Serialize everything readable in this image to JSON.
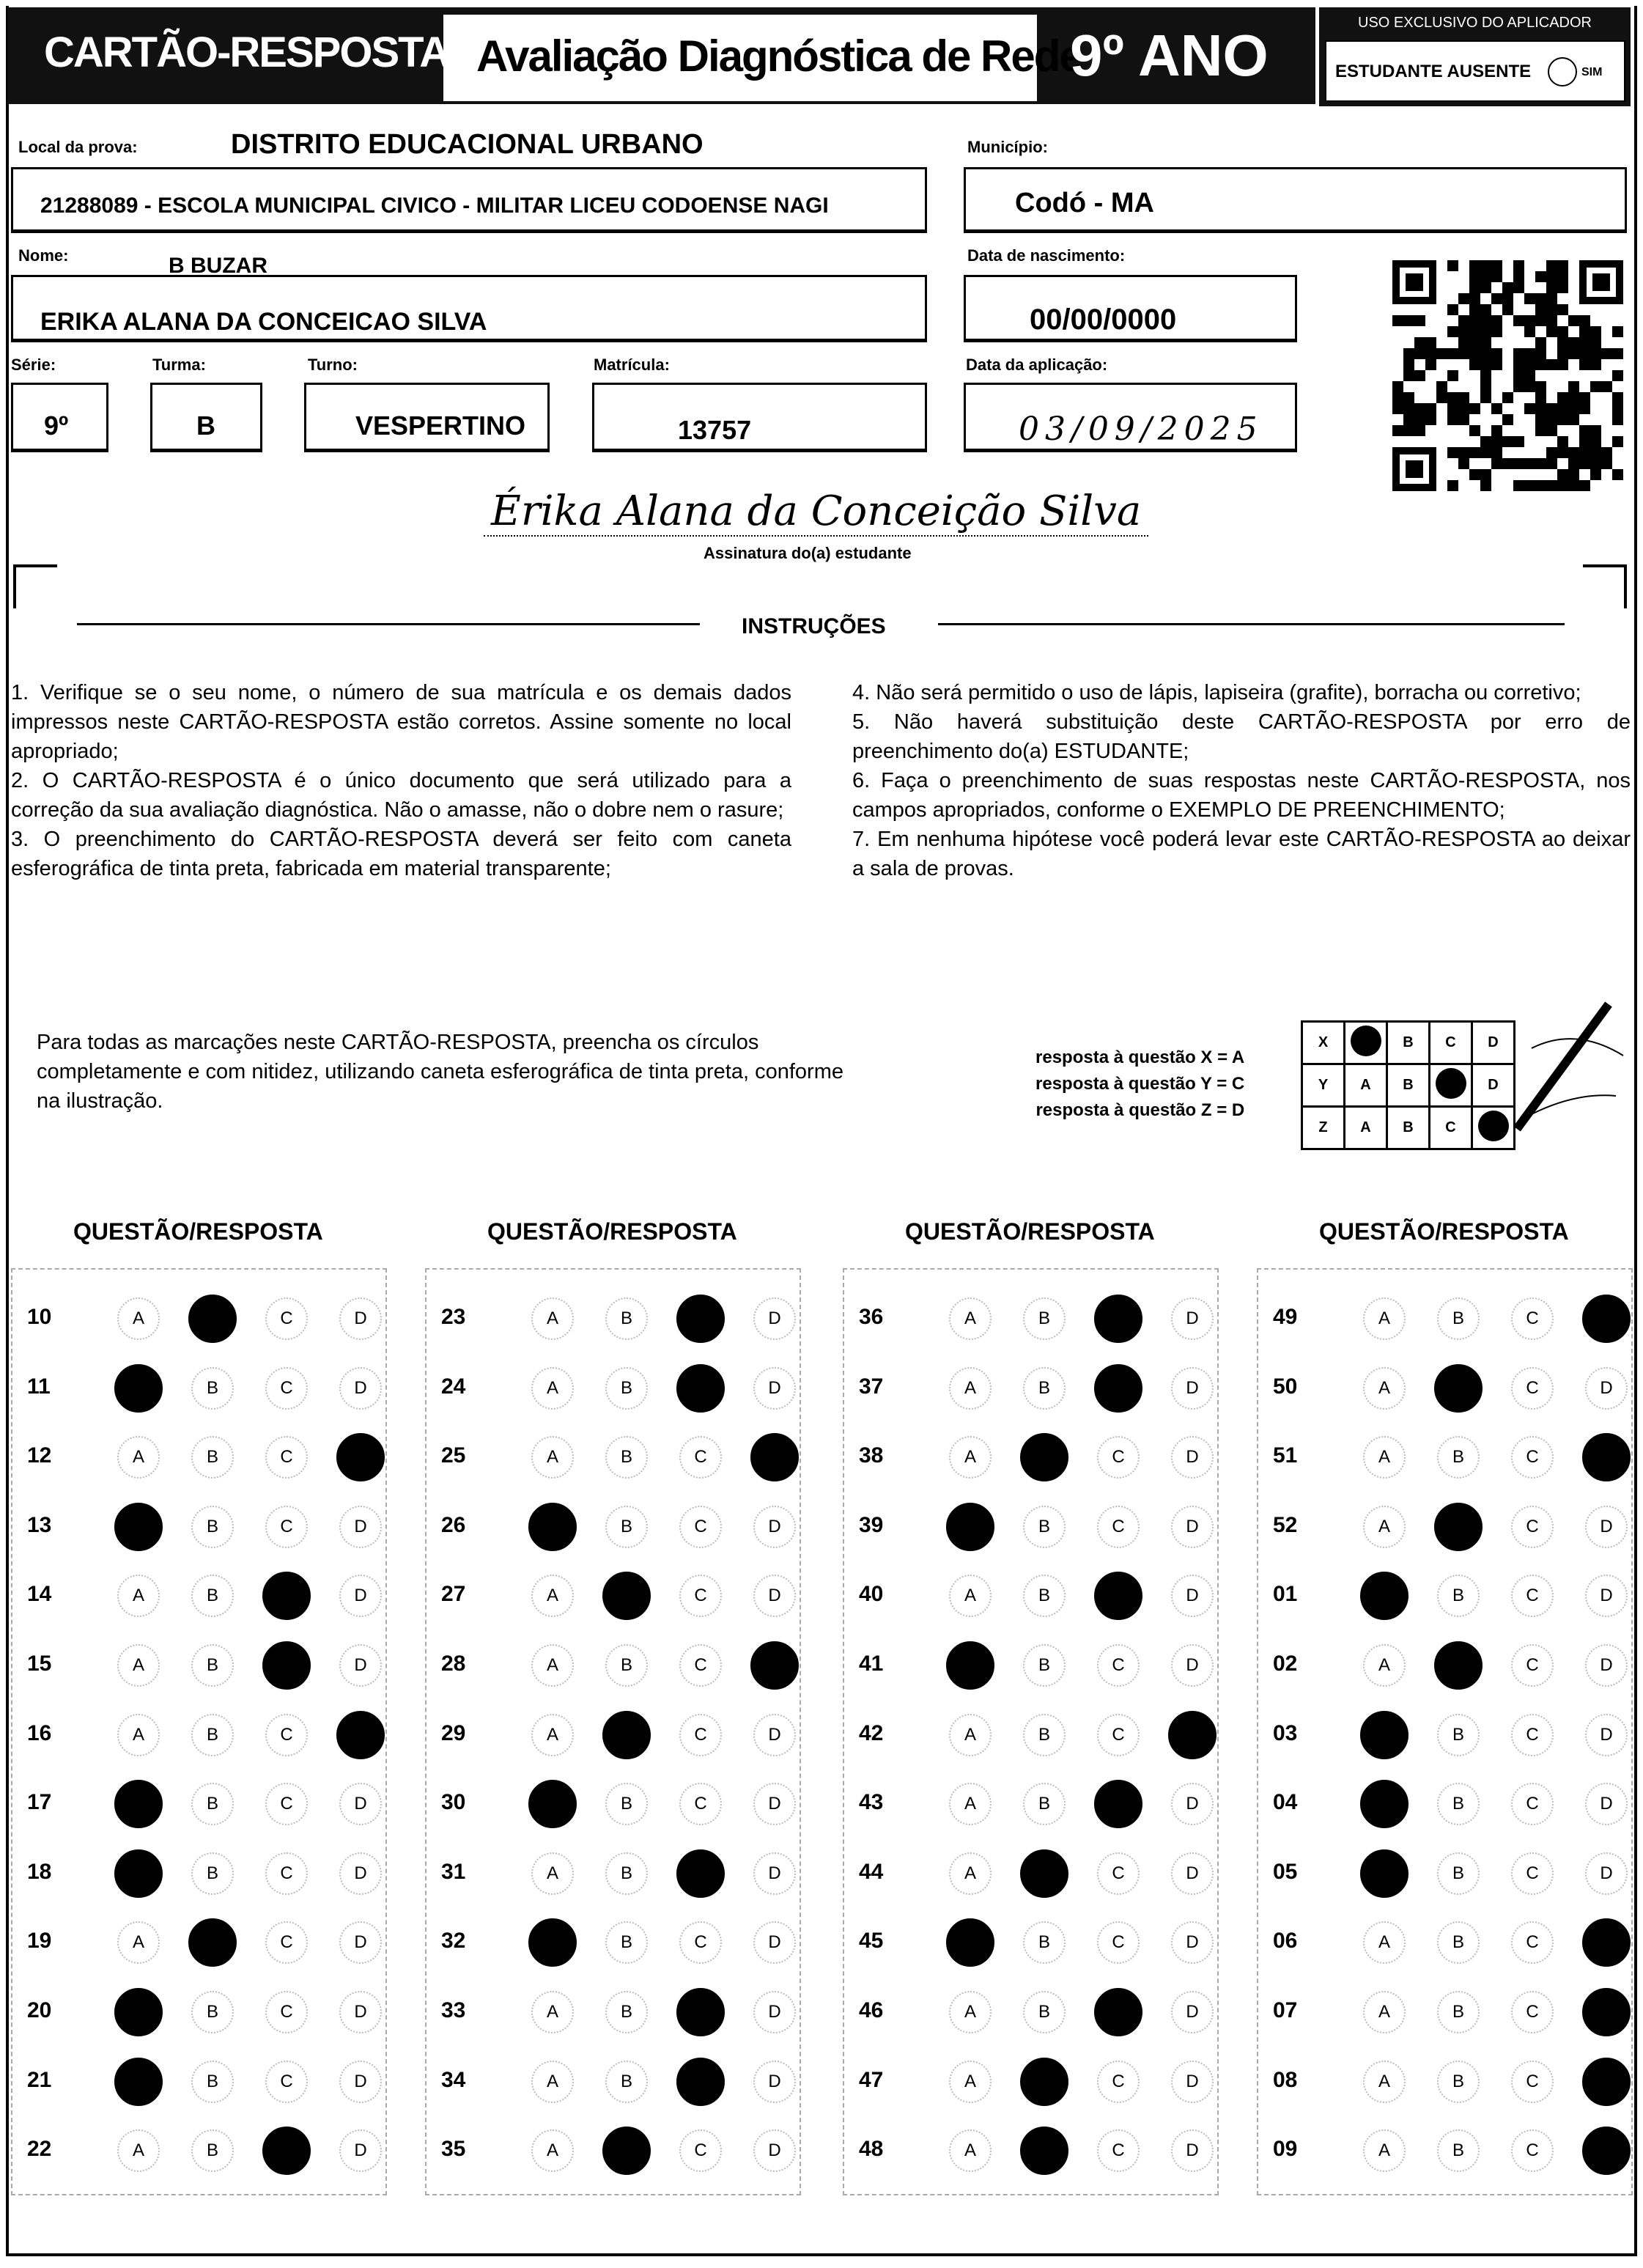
{
  "header": {
    "title": "CARTÃO-RESPOSTA",
    "subtitle": "Avaliação Diagnóstica de Rede",
    "grade": "9º ANO"
  },
  "applicator": {
    "title": "USO EXCLUSIVO DO APLICADOR",
    "absent_label": "ESTUDANTE AUSENTE",
    "absent_option": "SIM"
  },
  "fields": {
    "local_label": "Local da prova:",
    "local_value": "DISTRITO EDUCACIONAL URBANO",
    "school": "21288089 - ESCOLA MUNICIPAL CIVICO - MILITAR LICEU CODOENSE NAGI",
    "municipio_label": "Município:",
    "municipio": "Codó - MA",
    "nome_label": "Nome:",
    "nome_extra": "B BUZAR",
    "nome": "ERIKA ALANA DA CONCEICAO SILVA",
    "nasc_label": "Data de nascimento:",
    "nasc": "00/00/0000",
    "serie_label": "Série:",
    "serie": "9º",
    "turma_label": "Turma:",
    "turma": "B",
    "turno_label": "Turno:",
    "turno": "VESPERTINO",
    "matricula_label": "Matrícula:",
    "matricula": "13757",
    "aplicacao_label": "Data da aplicação:",
    "aplicacao": "03/09/2025",
    "signature": "Érika Alana da Conceição Silva",
    "signature_label": "Assinatura do(a) estudante"
  },
  "instructions": {
    "title": "INSTRUÇÕES",
    "left": "1. Verifique se o seu nome, o número de sua matrícula e os demais dados impressos neste CARTÃO-RESPOSTA estão corretos. Assine somente no local apropriado;\n2. O CARTÃO-RESPOSTA é o único documento que será utilizado para a correção da sua avaliação diagnóstica. Não o amasse, não o dobre nem o rasure;\n3. O preenchimento do CARTÃO-RESPOSTA deverá ser feito com caneta esferográfica de tinta preta, fabricada em material transparente;",
    "right": "4. Não será permitido o uso de lápis, lapiseira (grafite), borracha ou corretivo;\n5. Não haverá substituição deste CARTÃO-RESPOSTA por erro de preenchimento do(a) ESTUDANTE;\n6. Faça o preenchimento de suas respostas neste CARTÃO-RESPOSTA, nos campos apropriados, conforme o EXEMPLO DE PREENCHIMENTO;\n7. Em nenhuma hipótese você poderá levar este CARTÃO-RESPOSTA ao deixar a sala de provas.",
    "fill_text": "Para todas as marcações neste CARTÃO-RESPOSTA, preencha os círculos completamente e com nitidez, utilizando caneta esferográfica de tinta preta, conforme na ilustração.",
    "example_lines": [
      "resposta à questão X = A",
      "resposta à questão Y = C",
      "resposta à questão Z = D"
    ],
    "example": [
      {
        "q": "X",
        "ans": "A"
      },
      {
        "q": "Y",
        "ans": "C"
      },
      {
        "q": "Z",
        "ans": "D"
      }
    ]
  },
  "answers": {
    "heading": "QUESTÃO/RESPOSTA",
    "options": [
      "A",
      "B",
      "C",
      "D"
    ],
    "marked": {
      "01": "A",
      "02": "B",
      "03": "A",
      "04": "A",
      "05": "A",
      "06": "D",
      "07": "D",
      "08": "D",
      "09": "D",
      "10": "B",
      "11": "A",
      "12": "D",
      "13": "A",
      "14": "C",
      "15": "C",
      "16": "D",
      "17": "A",
      "18": "A",
      "19": "B",
      "20": "A",
      "21": "A",
      "22": "C",
      "23": "C",
      "24": "C",
      "25": "D",
      "26": "A",
      "27": "B",
      "28": "D",
      "29": "B",
      "30": "A",
      "31": "C",
      "32": "A",
      "33": "C",
      "34": "C",
      "35": "B",
      "36": "C",
      "37": "C",
      "38": "B",
      "39": "A",
      "40": "C",
      "41": "A",
      "42": "D",
      "43": "C",
      "44": "B",
      "45": "A",
      "46": "C",
      "47": "B",
      "48": "B",
      "49": "D",
      "50": "B",
      "51": "D",
      "52": "B"
    }
  }
}
